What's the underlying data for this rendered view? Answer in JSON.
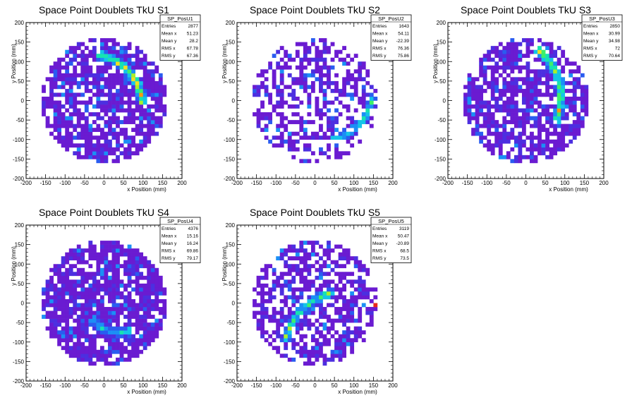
{
  "colors": {
    "palette": [
      "#6a1bd1",
      "#4c2fe0",
      "#2a5cf0",
      "#1b8ff5",
      "#14c4e8",
      "#17e3b0",
      "#3df06a",
      "#a8f02a",
      "#f0e020",
      "#f59a10",
      "#e8281a"
    ],
    "frame": "#000000",
    "background": "#ffffff"
  },
  "chart_data": [
    {
      "type": "heatmap",
      "title": "Space Point Doublets TkU S1",
      "xlabel": "x Position (mm)",
      "ylabel": "y Position (mm)",
      "xlim": [
        -200,
        200
      ],
      "ylim": [
        -200,
        200
      ],
      "xticks": [
        -200,
        -150,
        -100,
        -50,
        0,
        50,
        100,
        150,
        200
      ],
      "yticks": [
        -200,
        -150,
        -100,
        -50,
        0,
        50,
        100,
        150,
        200
      ],
      "bin_width_mm": 10,
      "detector_radius_mm": 160,
      "occupancy": 0.72,
      "seed": 11,
      "hot_band": {
        "type": "arc",
        "cx": -40,
        "cy": -20,
        "r": 140,
        "a0": 5,
        "a1": 80,
        "width": 16,
        "peak": 1.0
      },
      "stats": {
        "name": "SP_PosU1",
        "rows": [
          {
            "label": "Entries",
            "value": "2877"
          },
          {
            "label": "Mean x",
            "value": "51.23"
          },
          {
            "label": "Mean y",
            "value": "28.2"
          },
          {
            "label": "RMS x",
            "value": "67.78"
          },
          {
            "label": "RMS y",
            "value": "67.36"
          }
        ]
      }
    },
    {
      "type": "heatmap",
      "title": "Space Point Doublets TkU S2",
      "xlabel": "x Position (mm)",
      "ylabel": "y Position (mm)",
      "xlim": [
        -200,
        200
      ],
      "ylim": [
        -200,
        200
      ],
      "xticks": [
        -200,
        -150,
        -100,
        -50,
        0,
        50,
        100,
        150,
        200
      ],
      "yticks": [
        -200,
        -150,
        -100,
        -50,
        0,
        50,
        100,
        150,
        200
      ],
      "bin_width_mm": 10,
      "detector_radius_mm": 160,
      "occupancy": 0.5,
      "seed": 23,
      "hot_band": {
        "type": "arc",
        "cx": 20,
        "cy": 30,
        "r": 130,
        "a0": -80,
        "a1": -10,
        "width": 16,
        "peak": 0.65
      },
      "stats": {
        "name": "SP_PosU2",
        "rows": [
          {
            "label": "Entries",
            "value": "1643"
          },
          {
            "label": "Mean x",
            "value": "54.11"
          },
          {
            "label": "Mean y",
            "value": "-22.39"
          },
          {
            "label": "RMS x",
            "value": "76.36"
          },
          {
            "label": "RMS y",
            "value": "75.86"
          }
        ]
      }
    },
    {
      "type": "heatmap",
      "title": "Space Point Doublets TkU S3",
      "xlabel": "x Position (mm)",
      "ylabel": "y Position (mm)",
      "xlim": [
        -200,
        200
      ],
      "ylim": [
        -200,
        200
      ],
      "xticks": [
        -200,
        -150,
        -100,
        -50,
        0,
        50,
        100,
        150,
        200
      ],
      "yticks": [
        -200,
        -150,
        -100,
        -50,
        0,
        50,
        100,
        150,
        200
      ],
      "bin_width_mm": 10,
      "detector_radius_mm": 160,
      "occupancy": 0.7,
      "seed": 37,
      "hot_band": {
        "type": "arc",
        "cx": -60,
        "cy": 10,
        "r": 150,
        "a0": -25,
        "a1": 55,
        "width": 16,
        "peak": 1.0
      },
      "stats": {
        "name": "SP_PosU3",
        "rows": [
          {
            "label": "Entries",
            "value": "2850"
          },
          {
            "label": "Mean x",
            "value": "30.99"
          },
          {
            "label": "Mean y",
            "value": "34.98"
          },
          {
            "label": "RMS x",
            "value": "72"
          },
          {
            "label": "RMS y",
            "value": "70.64"
          }
        ]
      }
    },
    {
      "type": "heatmap",
      "title": "Space Point Doublets TkU S4",
      "xlabel": "x Position (mm)",
      "ylabel": "y Position (mm)",
      "xlim": [
        -200,
        200
      ],
      "ylim": [
        -200,
        200
      ],
      "xticks": [
        -200,
        -150,
        -100,
        -50,
        0,
        50,
        100,
        150,
        200
      ],
      "yticks": [
        -200,
        -150,
        -100,
        -50,
        0,
        50,
        100,
        150,
        200
      ],
      "bin_width_mm": 10,
      "detector_radius_mm": 160,
      "occupancy": 0.86,
      "seed": 41,
      "hot_band": {
        "type": "arc",
        "cx": 40,
        "cy": 20,
        "r": 95,
        "a0": -140,
        "a1": -70,
        "width": 18,
        "peak": 0.6
      },
      "stats": {
        "name": "SP_PosU4",
        "rows": [
          {
            "label": "Entries",
            "value": "4376"
          },
          {
            "label": "Mean x",
            "value": "15.16"
          },
          {
            "label": "Mean y",
            "value": "16.24"
          },
          {
            "label": "RMS x",
            "value": "69.86"
          },
          {
            "label": "RMS y",
            "value": "79.17"
          }
        ]
      }
    },
    {
      "type": "heatmap",
      "title": "Space Point Doublets TkU S5",
      "xlabel": "x Position (mm)",
      "ylabel": "y Position (mm)",
      "xlim": [
        -200,
        200
      ],
      "ylim": [
        -200,
        200
      ],
      "xticks": [
        -200,
        -150,
        -100,
        -50,
        0,
        50,
        100,
        150,
        200
      ],
      "yticks": [
        -200,
        -150,
        -100,
        -50,
        0,
        50,
        100,
        150,
        200
      ],
      "bin_width_mm": 10,
      "detector_radius_mm": 160,
      "occupancy": 0.6,
      "seed": 53,
      "hot_band": {
        "type": "arc",
        "cx": 80,
        "cy": -130,
        "r": 160,
        "a0": 100,
        "a1": 170,
        "width": 16,
        "peak": 0.8,
        "hot_spot": [
          160,
          0
        ]
      },
      "stats": {
        "name": "SP_PosU5",
        "rows": [
          {
            "label": "Entries",
            "value": "3119"
          },
          {
            "label": "Mean x",
            "value": "50.47"
          },
          {
            "label": "Mean y",
            "value": "-20.89"
          },
          {
            "label": "RMS x",
            "value": "68.5"
          },
          {
            "label": "RMS y",
            "value": "73.5"
          }
        ]
      }
    }
  ]
}
